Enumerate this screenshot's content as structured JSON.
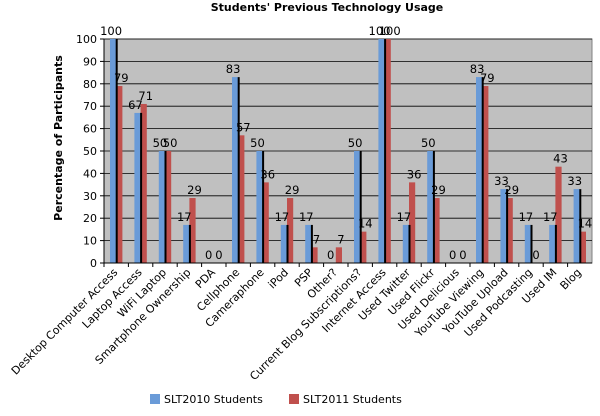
{
  "chart_data": {
    "type": "bar",
    "title": "Students' Previous Technology Usage",
    "xlabel": "",
    "ylabel": "Percentage of Participants",
    "ylim": [
      0,
      100
    ],
    "yticks": [
      0,
      10,
      20,
      30,
      40,
      50,
      60,
      70,
      80,
      90,
      100
    ],
    "grid": true,
    "legend_position": "bottom",
    "categories": [
      "Desktop Computer Access",
      "Laptop Access",
      "WiFi Laptop",
      "Smartphone Ownership",
      "PDA",
      "Cellphone",
      "Cameraphone",
      "iPod",
      "PSP",
      "Other?",
      "Current Blog Subscriptions?",
      "Internet Access",
      "Used Twitter",
      "Used Flickr",
      "Used Delicious",
      "YouTube Viewing",
      "YouTube Upload",
      "Used Podcasting",
      "Used IM",
      "Blog"
    ],
    "series": [
      {
        "name": "SLT2010 Students",
        "color": "#6A9BD8",
        "values": [
          100,
          67,
          50,
          17,
          0,
          83,
          50,
          17,
          17,
          0,
          50,
          100,
          17,
          50,
          0,
          83,
          33,
          17,
          17,
          33
        ]
      },
      {
        "name": "SLT2011 Students",
        "color": "#C0504D",
        "values": [
          79,
          71,
          50,
          29,
          0,
          57,
          36,
          29,
          7,
          7,
          14,
          100,
          36,
          29,
          0,
          79,
          29,
          0,
          43,
          14
        ]
      }
    ],
    "background_color": "#C0C0C0"
  }
}
